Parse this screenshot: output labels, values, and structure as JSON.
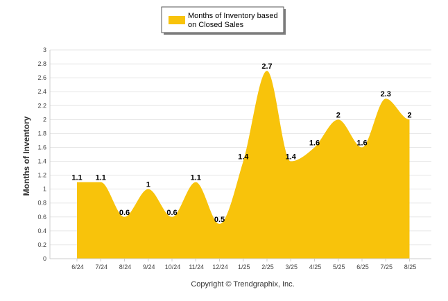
{
  "chart_data": {
    "type": "area",
    "categories": [
      "6/24",
      "7/24",
      "8/24",
      "9/24",
      "10/24",
      "11/24",
      "12/24",
      "1/25",
      "2/25",
      "3/25",
      "4/25",
      "5/25",
      "6/25",
      "7/25",
      "8/25"
    ],
    "series": [
      {
        "name": "Months of Inventory based on Closed Sales",
        "legend_lines": [
          "Months of Inventory based",
          "on Closed Sales"
        ],
        "values": [
          1.1,
          1.1,
          0.6,
          1,
          0.6,
          1.1,
          0.5,
          1.4,
          2.7,
          1.4,
          1.6,
          2,
          1.6,
          2.3,
          2
        ],
        "labels": [
          "1.1",
          "1.1",
          "0.6",
          "1",
          "0.6",
          "1.1",
          "0.5",
          "1.4",
          "2.7",
          "1.4",
          "1.6",
          "2",
          "1.6",
          "2.3",
          "2"
        ],
        "color": "#F8C30B"
      }
    ],
    "ylabel": "Months of Inventory",
    "ylim": [
      0,
      3
    ],
    "yticks": [
      "0",
      "0.2",
      "0.4",
      "0.6",
      "0.8",
      "1",
      "1.2",
      "1.4",
      "1.6",
      "1.8",
      "2",
      "2.2",
      "2.4",
      "2.6",
      "2.8",
      "3"
    ],
    "grid": true,
    "legend_position": "top-center",
    "smooth": true,
    "credit": "Copyright © Trendgraphix, Inc.",
    "grid_color": "#e6e6e6",
    "axis_color": "#cccccc"
  }
}
